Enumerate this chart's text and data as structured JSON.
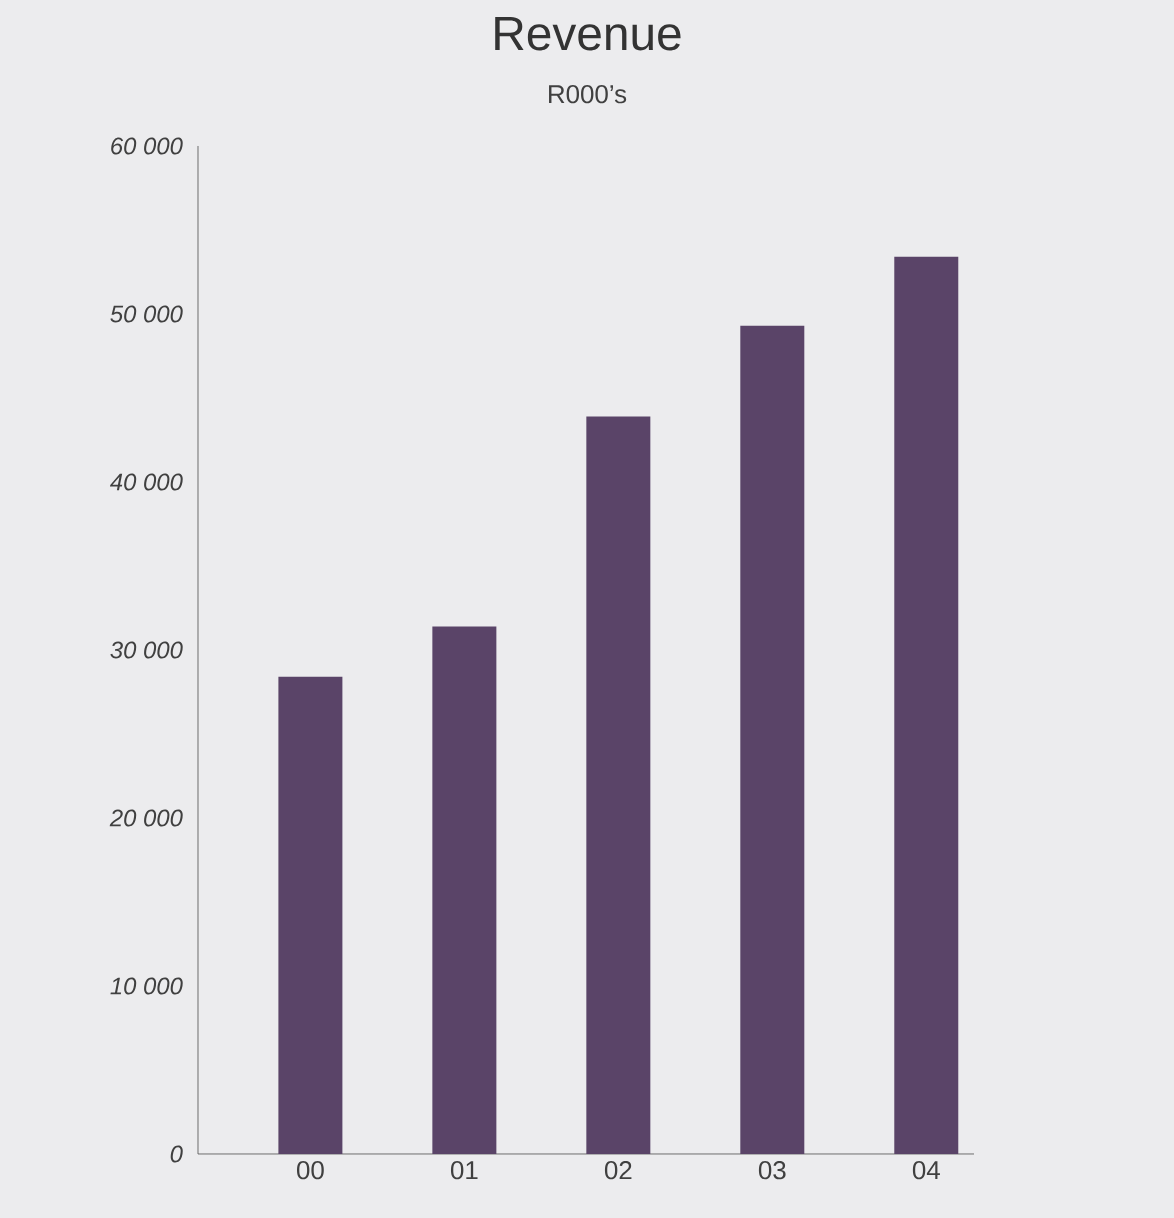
{
  "chart_data": {
    "type": "bar",
    "title": "Revenue",
    "subtitle": "R000’s",
    "categories": [
      "00",
      "01",
      "02",
      "03",
      "04"
    ],
    "values": [
      28400,
      31400,
      43900,
      49300,
      53400
    ],
    "color": "#5a4468",
    "ylim": [
      0,
      60000
    ],
    "yticks": [
      {
        "value": 0,
        "label": "0"
      },
      {
        "value": 10000,
        "label": "10 000"
      },
      {
        "value": 20000,
        "label": "20 000"
      },
      {
        "value": 30000,
        "label": "30 000"
      },
      {
        "value": 40000,
        "label": "40 000"
      },
      {
        "value": 50000,
        "label": "50 000"
      },
      {
        "value": 60000,
        "label": "60 000"
      }
    ],
    "grid": false
  }
}
